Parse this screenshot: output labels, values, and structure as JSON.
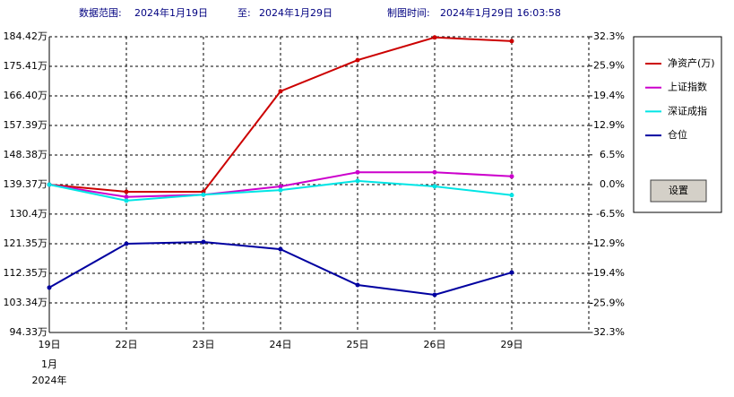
{
  "header": {
    "range_label": "数据范围:",
    "start_date": "2024年1月19日",
    "to_label": "至:",
    "end_date": "2024年1月29日",
    "time_label": "制图时间:",
    "time": "2024年1月29日 16:03:58"
  },
  "chart_data": {
    "type": "line",
    "categories": [
      "19日",
      "22日",
      "23日",
      "24日",
      "25日",
      "26日",
      "29日"
    ],
    "x_sublabels": [
      "1月",
      "2024年"
    ],
    "ylim": [
      94.33,
      184.42
    ],
    "yticks": [
      {
        "value": 184.42,
        "label": "184.42万"
      },
      {
        "value": 175.41,
        "label": "175.41万"
      },
      {
        "value": 166.4,
        "label": "166.40万"
      },
      {
        "value": 157.39,
        "label": "157.39万"
      },
      {
        "value": 148.38,
        "label": "148.38万"
      },
      {
        "value": 139.37,
        "label": "139.37万"
      },
      {
        "value": 130.4,
        "label": "130.4万"
      },
      {
        "value": 121.35,
        "label": "121.35万"
      },
      {
        "value": 112.35,
        "label": "112.35万"
      },
      {
        "value": 103.34,
        "label": "103.34万"
      },
      {
        "value": 94.33,
        "label": "94.33万"
      }
    ],
    "y2lim": [
      -32.3,
      32.3
    ],
    "y2ticks": [
      {
        "value": 32.3,
        "label": "32.3%"
      },
      {
        "value": 25.9,
        "label": "25.9%"
      },
      {
        "value": 19.4,
        "label": "19.4%"
      },
      {
        "value": 12.9,
        "label": "12.9%"
      },
      {
        "value": 6.5,
        "label": "6.5%"
      },
      {
        "value": 0.0,
        "label": "0.0%"
      },
      {
        "value": -6.5,
        "label": "-6.5%"
      },
      {
        "value": -12.9,
        "label": "-12.9%"
      },
      {
        "value": -19.4,
        "label": "-19.4%"
      },
      {
        "value": -25.9,
        "label": "-25.9%"
      },
      {
        "value": -32.3,
        "label": "-32.3%"
      }
    ],
    "grid": true,
    "series": [
      {
        "name": "净资产(万)",
        "color": "#cc0000",
        "values": [
          139.37,
          137.2,
          137.2,
          167.8,
          177.3,
          184.2,
          183.1
        ]
      },
      {
        "name": "上证指数",
        "color": "#cc00cc",
        "axis": "y2",
        "values": [
          0,
          -2.7,
          -2.2,
          -0.4,
          2.7,
          2.7,
          1.8
        ]
      },
      {
        "name": "深证成指",
        "color": "#00e5e5",
        "axis": "y2",
        "values": [
          0,
          -3.5,
          -2.2,
          -1.2,
          0.8,
          -0.4,
          -2.3
        ]
      },
      {
        "name": "仓位",
        "color": "#0000a0",
        "values": [
          108.0,
          121.35,
          121.9,
          119.7,
          108.8,
          105.8,
          112.6
        ]
      }
    ],
    "button": "设置"
  }
}
